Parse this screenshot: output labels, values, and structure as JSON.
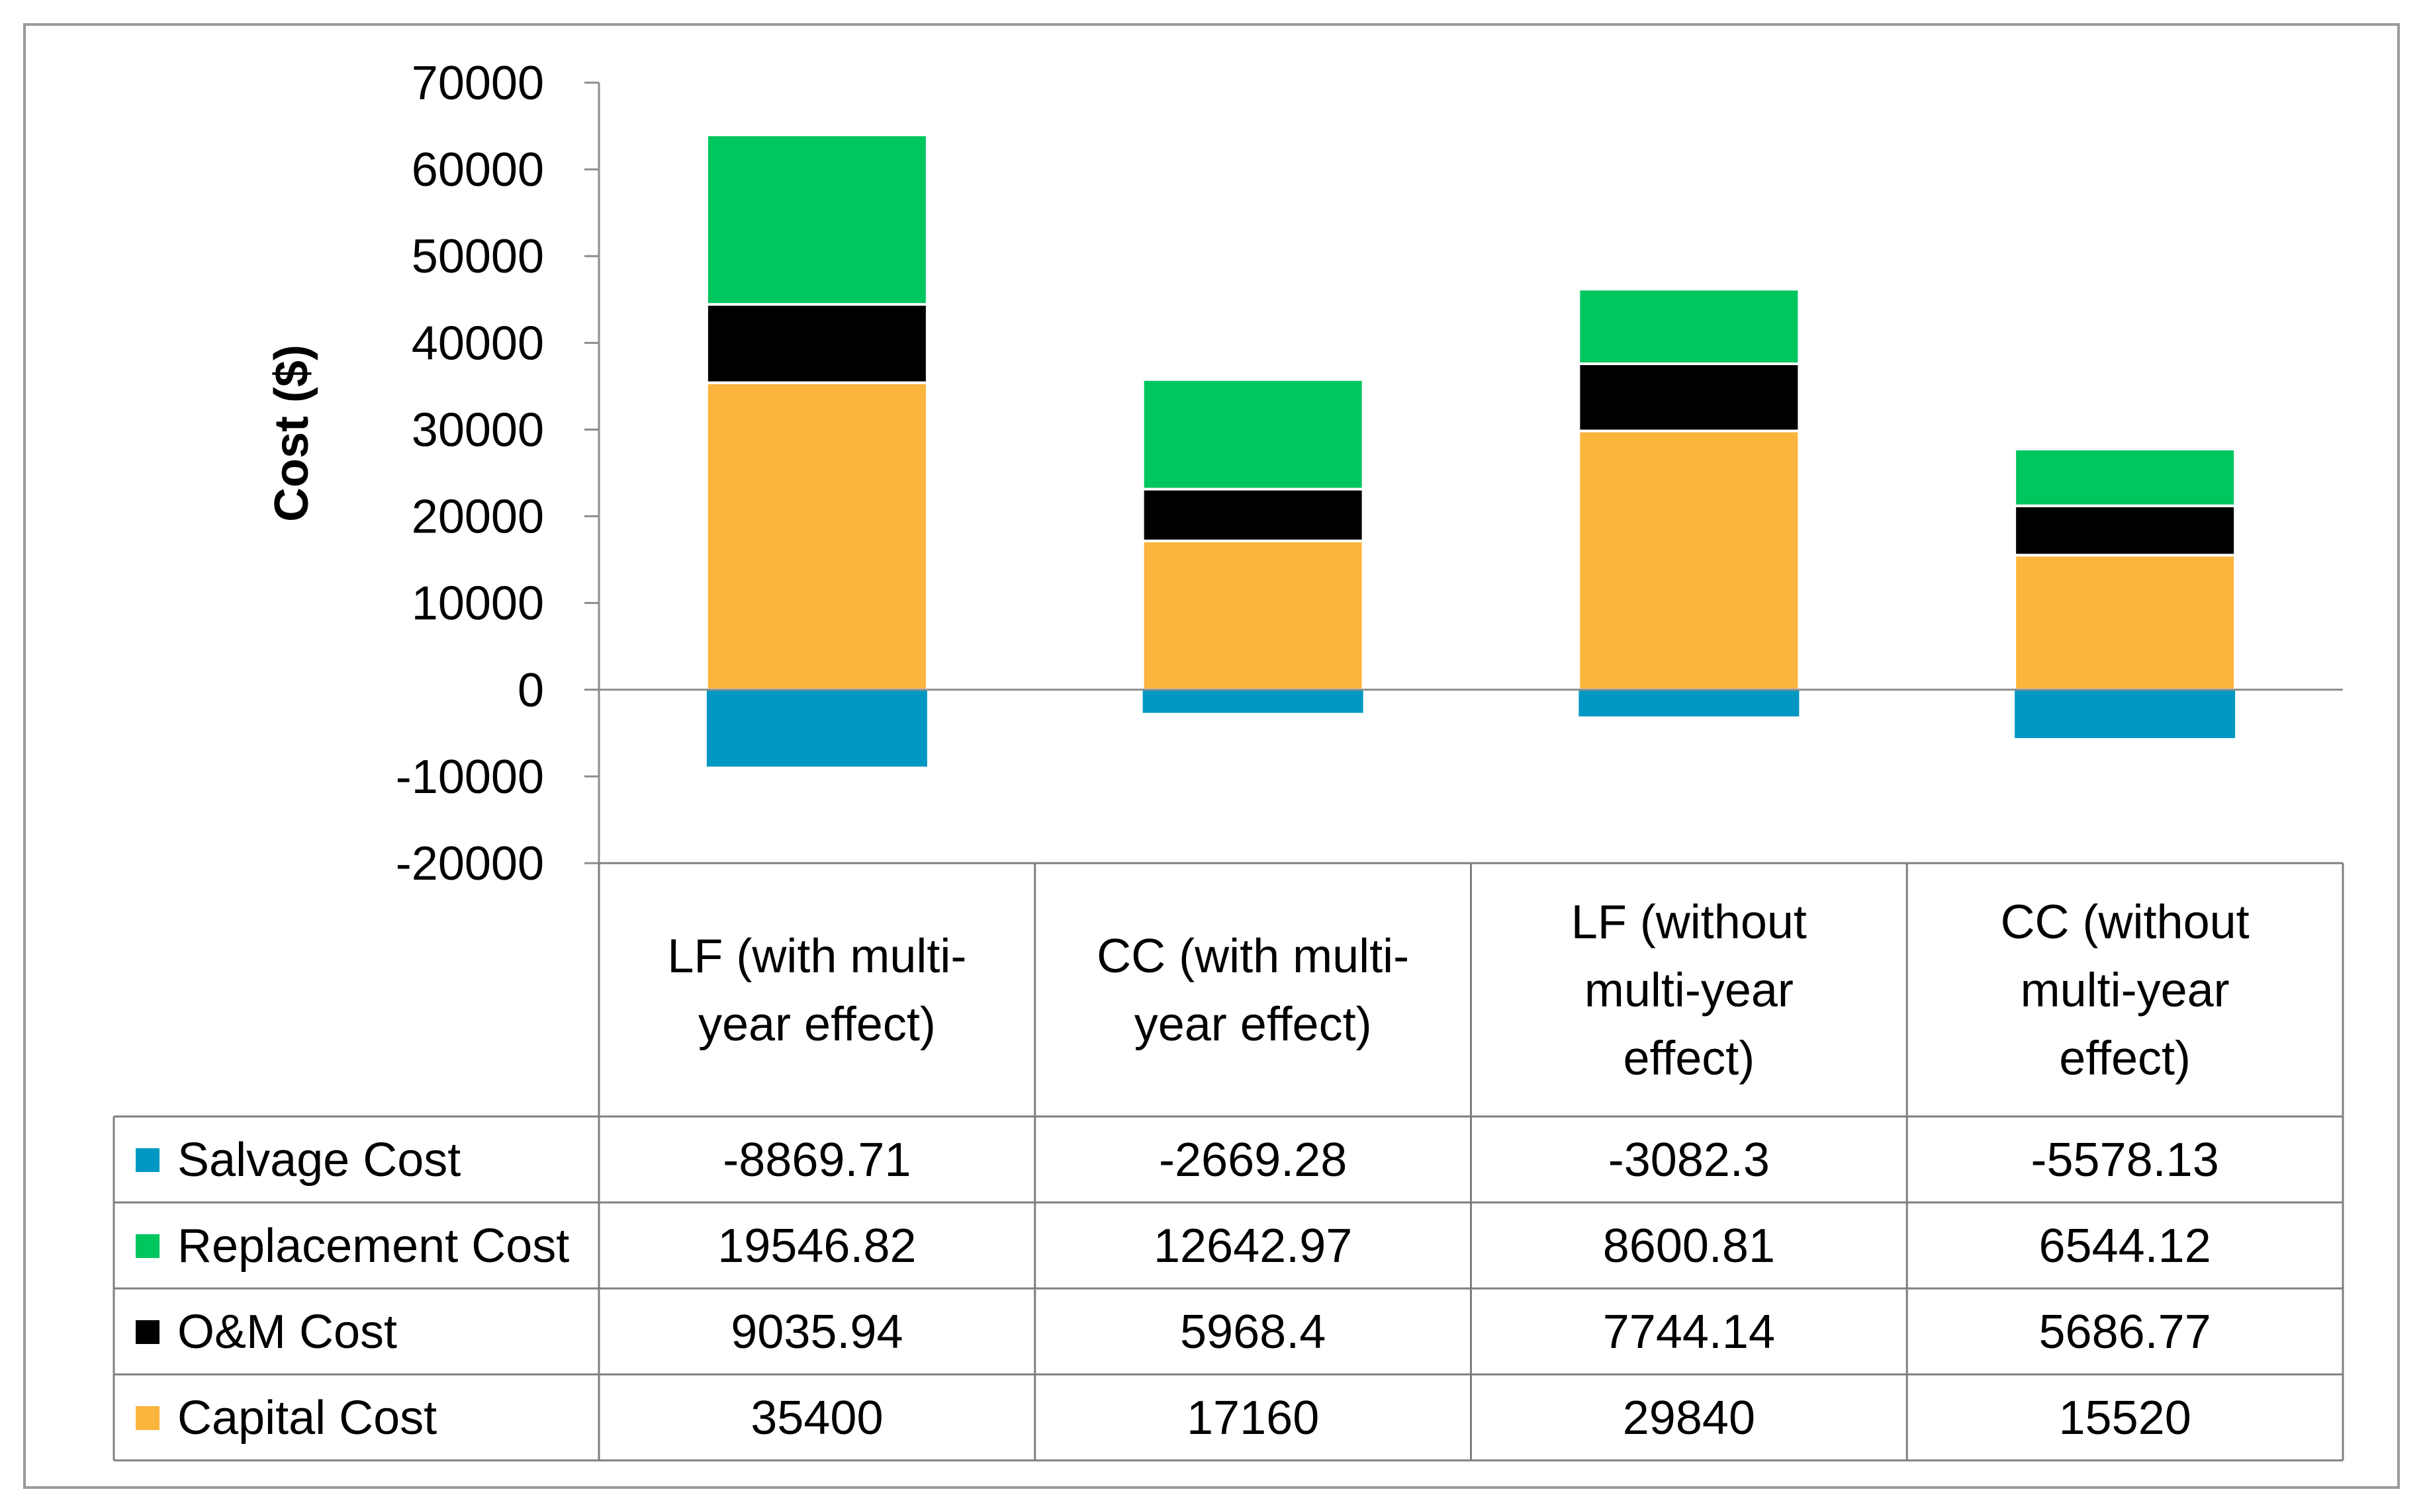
{
  "chart_data": {
    "type": "bar",
    "stacked": true,
    "title": "",
    "xlabel": "",
    "ylabel": "Cost ($)",
    "ylim": [
      -20000,
      70000
    ],
    "yticks": [
      70000,
      60000,
      50000,
      40000,
      30000,
      20000,
      10000,
      0,
      -10000,
      -20000
    ],
    "categories": [
      [
        "LF (with multi-",
        "year effect)"
      ],
      [
        "CC (with multi-",
        "year effect)"
      ],
      [
        "LF (without",
        "multi-year",
        "effect)"
      ],
      [
        "CC (without",
        "multi-year",
        "effect)"
      ]
    ],
    "series": [
      {
        "name": "Salvage Cost",
        "color": "#0098C3",
        "values": [
          -8869.71,
          -2669.28,
          -3082.3,
          -5578.13
        ],
        "labels": [
          "-8869.71",
          "-2669.28",
          "-3082.3",
          "-5578.13"
        ]
      },
      {
        "name": "Replacement Cost",
        "color": "#00C65E",
        "values": [
          19546.82,
          12642.97,
          8600.81,
          6544.12
        ],
        "labels": [
          "19546.82",
          "12642.97",
          "8600.81",
          "6544.12"
        ]
      },
      {
        "name": "O&M Cost",
        "color": "#000000",
        "values": [
          9035.94,
          5968.4,
          7744.14,
          5686.77
        ],
        "labels": [
          "9035.94",
          "5968.4",
          "7744.14",
          "5686.77"
        ]
      },
      {
        "name": "Capital Cost",
        "color": "#FBB43C",
        "values": [
          35400,
          17160,
          29840,
          15520
        ],
        "labels": [
          "35400",
          "17160",
          "29840",
          "15520"
        ]
      }
    ],
    "stack_order": [
      "Capital Cost",
      "O&M Cost",
      "Replacement Cost"
    ],
    "data_table": true
  }
}
